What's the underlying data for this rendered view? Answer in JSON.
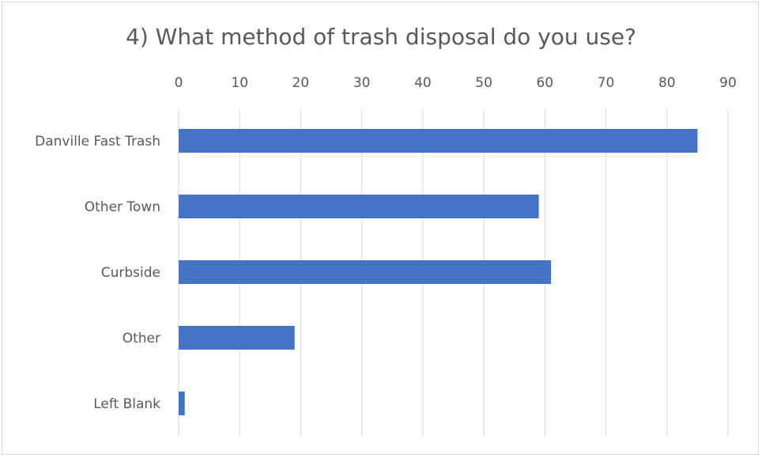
{
  "chart_data": {
    "type": "bar",
    "orientation": "horizontal",
    "title": "4) What method of trash disposal do you use?",
    "categories": [
      "Danville Fast Trash",
      "Other Town",
      "Curbside",
      "Other",
      "Left Blank"
    ],
    "values": [
      85,
      59,
      61,
      19,
      1
    ],
    "xlim": [
      0,
      90
    ],
    "x_ticks": [
      "0",
      "10",
      "20",
      "30",
      "40",
      "50",
      "60",
      "70",
      "80",
      "90"
    ],
    "axis_position": "top",
    "grid": true,
    "legend": "none",
    "bar_color": "#4472c4",
    "grid_color": "#d9d9d9",
    "text_color": "#595959"
  }
}
